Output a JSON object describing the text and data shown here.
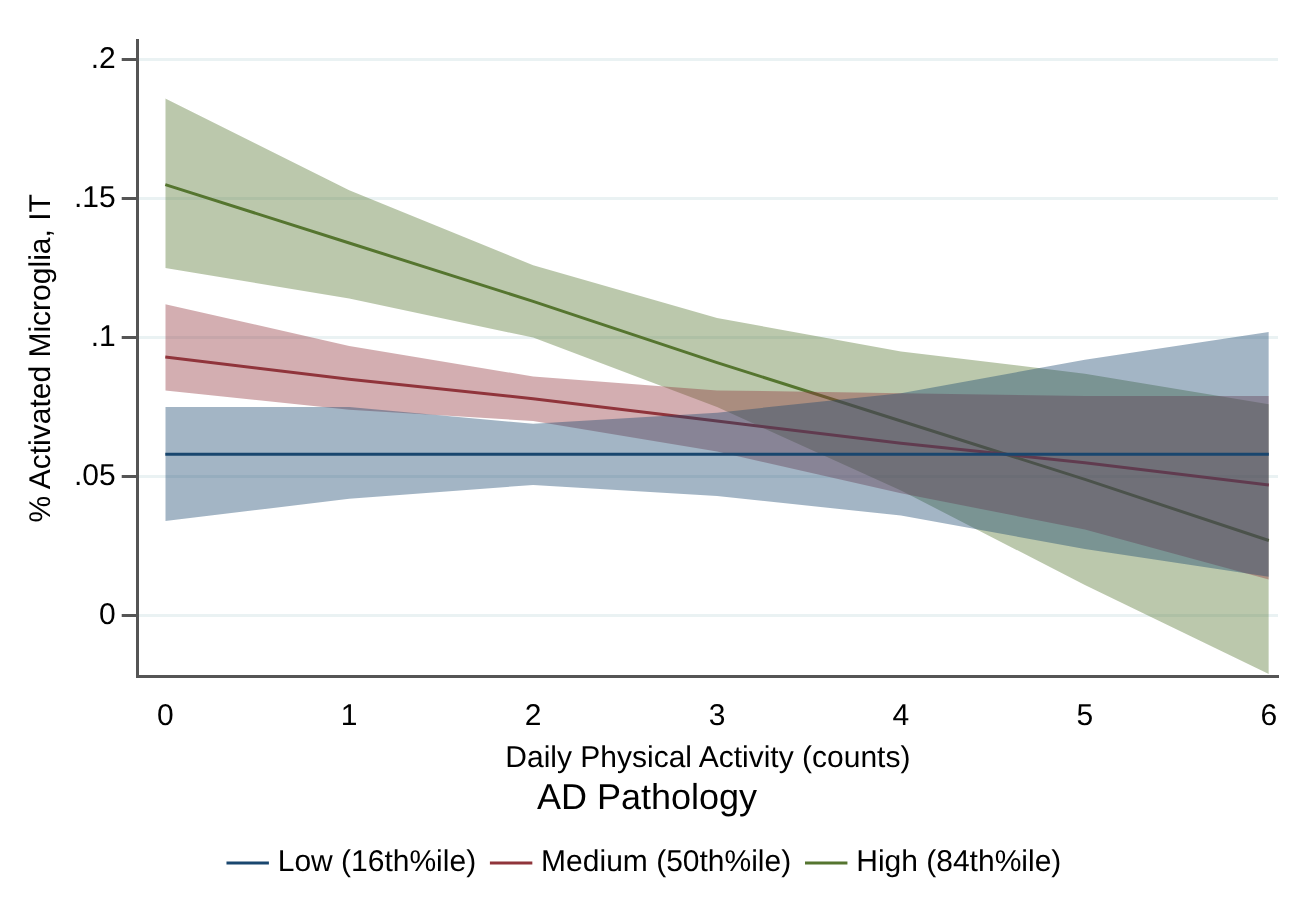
{
  "chart_data": {
    "type": "line",
    "xlabel": "Daily Physical Activity (counts)",
    "ylabel": "% Activated Microglia, IT",
    "legend_title": "AD Pathology",
    "x": [
      0,
      1,
      2,
      3,
      4,
      5,
      6
    ],
    "series": [
      {
        "name": "Low (16th%ile)",
        "color": "#1a476f",
        "values": [
          0.058,
          0.058,
          0.058,
          0.058,
          0.058,
          0.058,
          0.058
        ],
        "lower": [
          0.034,
          0.042,
          0.047,
          0.043,
          0.036,
          0.024,
          0.014
        ],
        "upper": [
          0.075,
          0.075,
          0.069,
          0.073,
          0.08,
          0.092,
          0.102
        ]
      },
      {
        "name": "Medium (50th%ile)",
        "color": "#90353b",
        "values": [
          0.093,
          0.085,
          0.078,
          0.07,
          0.062,
          0.055,
          0.047
        ],
        "lower": [
          0.081,
          0.074,
          0.07,
          0.059,
          0.044,
          0.031,
          0.013
        ],
        "upper": [
          0.112,
          0.097,
          0.086,
          0.081,
          0.08,
          0.079,
          0.079
        ]
      },
      {
        "name": "High (84th%ile)",
        "color": "#55752f",
        "values": [
          0.155,
          0.134,
          0.113,
          0.091,
          0.07,
          0.049,
          0.027
        ],
        "lower": [
          0.125,
          0.114,
          0.1,
          0.075,
          0.045,
          0.011,
          -0.021
        ],
        "upper": [
          0.186,
          0.153,
          0.126,
          0.107,
          0.095,
          0.087,
          0.076
        ]
      }
    ],
    "xlim": [
      -0.15,
      6.05
    ],
    "xticks": [
      0,
      1,
      2,
      3,
      4,
      5,
      6
    ],
    "ylim": [
      -0.022,
      0.207
    ],
    "yticks": [
      {
        "value": 0,
        "label": "0"
      },
      {
        "value": 0.05,
        "label": ".05"
      },
      {
        "value": 0.1,
        "label": ".1"
      },
      {
        "value": 0.15,
        "label": ".15"
      },
      {
        "value": 0.2,
        "label": ".2"
      }
    ],
    "grid": "y",
    "legend": "bottom",
    "marker": "none",
    "line_style": "solid"
  }
}
